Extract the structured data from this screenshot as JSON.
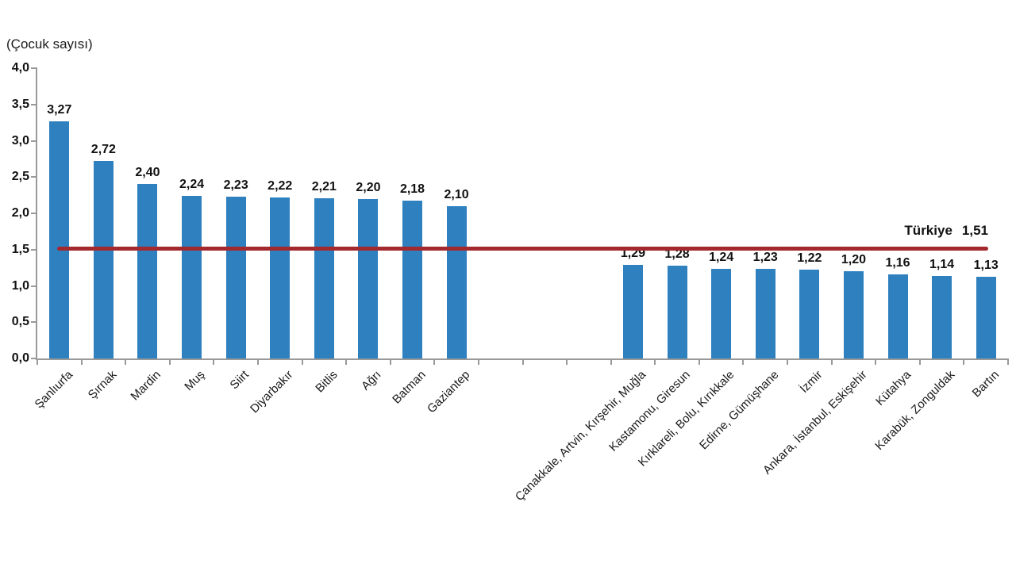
{
  "chart_data": {
    "type": "bar",
    "title": "",
    "xlabel": "",
    "ylabel": "(Çocuk sayısı)",
    "ylim": [
      0,
      4
    ],
    "grid": false,
    "legend": false,
    "bar_color": "#2E80BF",
    "axis_color": "#999999",
    "categories": [
      "Şanlıurfa",
      "Şırnak",
      "Mardin",
      "Muş",
      "Siirt",
      "Diyarbakır",
      "Bitlis",
      "Ağrı",
      "Batman",
      "Gaziantep",
      "Çanakkale, Artvin, Kırşehir, Muğla",
      "Kastamonu, Giresun",
      "Kırklareli, Bolu, Kırıkkale",
      "Edirne, Gümüşhane",
      "İzmir",
      "Ankara, İstanbul, Eskişehir",
      "Kütahya",
      "Karabük, Zonguldak",
      "Bartın"
    ],
    "values": [
      3.27,
      2.72,
      2.4,
      2.24,
      2.23,
      2.22,
      2.21,
      2.2,
      2.18,
      2.1,
      1.29,
      1.28,
      1.24,
      1.23,
      1.22,
      1.2,
      1.16,
      1.14,
      1.13
    ],
    "value_labels": [
      "3,27",
      "2,72",
      "2,40",
      "2,24",
      "2,23",
      "2,22",
      "2,21",
      "2,20",
      "2,18",
      "2,10",
      "1,29",
      "1,28",
      "1,24",
      "1,23",
      "1,22",
      "1,20",
      "1,16",
      "1,14",
      "1,13"
    ],
    "gap_after_index": 9,
    "gap_slots": 3,
    "yticks": [
      {
        "value": 0.0,
        "label": "0,0"
      },
      {
        "value": 0.5,
        "label": "0,5"
      },
      {
        "value": 1.0,
        "label": "1,0"
      },
      {
        "value": 1.5,
        "label": "1,5"
      },
      {
        "value": 2.0,
        "label": "2,0"
      },
      {
        "value": 2.5,
        "label": "2,5"
      },
      {
        "value": 3.0,
        "label": "3,0"
      },
      {
        "value": 3.5,
        "label": "3,5"
      },
      {
        "value": 4.0,
        "label": "4,0"
      }
    ],
    "reference_line": {
      "label": "Türkiye",
      "value": 1.51,
      "value_label": "1,51",
      "color": "#A3292E"
    }
  }
}
